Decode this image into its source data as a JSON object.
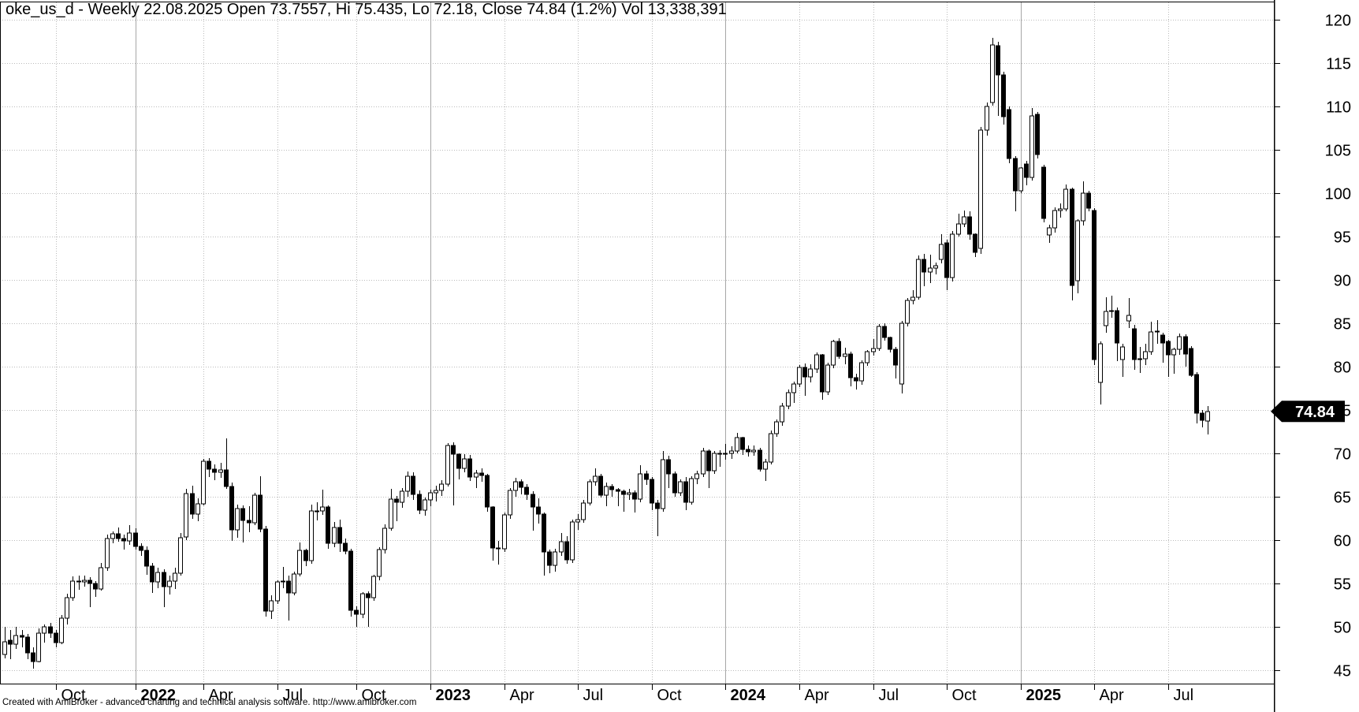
{
  "title": {
    "text": "oke_us_d - Weekly 22.08.2025 Open 73.7557, Hi 75.435, Lo 72.18, Close 74.84 (1.2%) Vol 13,338,391"
  },
  "footer": {
    "credit": "Created with AmiBroker - advanced charting and technical analysis software. http://www.amibroker.com"
  },
  "price_marker": {
    "value": "74.84",
    "price": 74.84,
    "bg_color": "#000000",
    "text_color": "#ffffff"
  },
  "colors": {
    "background": "#ffffff",
    "axis_line": "#000000",
    "grid_dotted": "#bbbbbb",
    "grid_year_solid": "#a6a6a6",
    "candle_up_fill": "#ffffff",
    "candle_down_fill": "#000000",
    "candle_outline": "#000000",
    "label_text": "#000000"
  },
  "chart_data": {
    "type": "candlestick",
    "symbol": "oke_us_d",
    "interval": "Weekly",
    "last_bar": {
      "date": "22.08.2025",
      "open": 73.7557,
      "high": 75.435,
      "low": 72.18,
      "close": 74.84,
      "change_pct": "1.2%",
      "volume": "13,338,391"
    },
    "ylim": [
      43.45,
      122.0
    ],
    "y_axis": {
      "min": 45,
      "max": 120,
      "step": 5,
      "tick_labels": [
        "120",
        "115",
        "110",
        "105",
        "100",
        "95",
        "90",
        "85",
        "80",
        "75",
        "70",
        "65",
        "60",
        "55",
        "50",
        "45"
      ]
    },
    "x_axis": {
      "tick_labels": [
        "Oct",
        "2022",
        "Apr",
        "Jul",
        "Oct",
        "2023",
        "Apr",
        "Jul",
        "Oct",
        "2024",
        "Apr",
        "Jul",
        "Oct",
        "2025",
        "Apr",
        "Jul"
      ],
      "tick_bar_index": [
        9,
        23,
        35,
        48,
        62,
        75,
        88,
        101,
        114,
        127,
        140,
        153,
        166,
        179,
        192,
        205
      ],
      "tick_is_year": [
        false,
        true,
        false,
        false,
        false,
        true,
        false,
        false,
        false,
        true,
        false,
        false,
        false,
        true,
        false,
        false
      ]
    },
    "grid": {
      "horizontal": "dotted",
      "vertical_month": "dotted",
      "vertical_year": "solid"
    },
    "bars_format": [
      "open",
      "high",
      "low",
      "close"
    ],
    "bars": [
      [
        46.8,
        50.0,
        46.4,
        48.3
      ],
      [
        48.5,
        49.6,
        46.3,
        48.0
      ],
      [
        48.0,
        50.0,
        47.5,
        49.0
      ],
      [
        49.0,
        49.6,
        47.6,
        48.8
      ],
      [
        48.8,
        49.2,
        46.3,
        47.0
      ],
      [
        47.0,
        47.6,
        45.2,
        46.0
      ],
      [
        46.0,
        49.8,
        45.9,
        49.3
      ],
      [
        49.3,
        50.3,
        48.2,
        50.0
      ],
      [
        50.0,
        50.5,
        48.7,
        49.3
      ],
      [
        49.3,
        49.6,
        47.6,
        48.2
      ],
      [
        48.2,
        51.4,
        48.0,
        51.0
      ],
      [
        51.0,
        53.8,
        50.3,
        53.4
      ],
      [
        53.4,
        55.8,
        53.0,
        55.3
      ],
      [
        55.3,
        55.9,
        54.3,
        55.2
      ],
      [
        55.2,
        55.9,
        54.6,
        55.4
      ],
      [
        55.4,
        55.7,
        52.3,
        55.0
      ],
      [
        55.0,
        55.3,
        53.5,
        54.4
      ],
      [
        54.4,
        57.4,
        54.2,
        56.8
      ],
      [
        56.8,
        60.6,
        56.5,
        60.2
      ],
      [
        60.2,
        61.0,
        59.6,
        60.7
      ],
      [
        60.7,
        61.5,
        59.8,
        60.2
      ],
      [
        60.2,
        60.6,
        58.9,
        59.9
      ],
      [
        59.9,
        61.7,
        59.5,
        60.8
      ],
      [
        60.8,
        61.4,
        58.9,
        59.3
      ],
      [
        59.3,
        59.6,
        58.2,
        58.8
      ],
      [
        58.8,
        59.3,
        56.0,
        57.0
      ],
      [
        57.0,
        57.4,
        53.9,
        55.2
      ],
      [
        55.2,
        56.8,
        54.5,
        56.3
      ],
      [
        56.3,
        56.6,
        52.3,
        54.6
      ],
      [
        54.6,
        55.9,
        53.7,
        55.3
      ],
      [
        55.3,
        56.8,
        54.4,
        56.2
      ],
      [
        56.2,
        60.8,
        55.9,
        60.3
      ],
      [
        60.4,
        65.9,
        60.0,
        65.4
      ],
      [
        65.4,
        66.3,
        62.5,
        63.0
      ],
      [
        63.0,
        64.8,
        62.2,
        64.2
      ],
      [
        64.2,
        69.4,
        64.0,
        69.1
      ],
      [
        69.1,
        69.5,
        67.3,
        68.2
      ],
      [
        68.2,
        68.7,
        66.9,
        67.8
      ],
      [
        67.8,
        68.9,
        67.2,
        68.1
      ],
      [
        68.1,
        71.7,
        65.9,
        66.2
      ],
      [
        66.2,
        66.6,
        59.9,
        61.2
      ],
      [
        61.2,
        64.1,
        60.3,
        63.6
      ],
      [
        63.6,
        64.0,
        59.7,
        62.3
      ],
      [
        62.3,
        63.9,
        60.9,
        62.0
      ],
      [
        62.0,
        65.5,
        61.7,
        65.2
      ],
      [
        65.2,
        67.4,
        60.9,
        61.3
      ],
      [
        61.3,
        61.6,
        51.2,
        51.8
      ],
      [
        51.8,
        53.6,
        50.9,
        53.0
      ],
      [
        53.0,
        55.4,
        52.6,
        55.2
      ],
      [
        55.2,
        56.9,
        54.5,
        55.3
      ],
      [
        55.3,
        55.9,
        50.7,
        53.9
      ],
      [
        53.9,
        56.4,
        53.6,
        56.1
      ],
      [
        56.1,
        59.7,
        55.8,
        58.8
      ],
      [
        58.8,
        59.0,
        57.0,
        57.6
      ],
      [
        57.6,
        64.1,
        57.3,
        63.4
      ],
      [
        63.4,
        64.4,
        62.3,
        63.4
      ],
      [
        63.4,
        65.8,
        62.9,
        63.8
      ],
      [
        63.8,
        64.0,
        59.0,
        59.6
      ],
      [
        59.6,
        62.1,
        59.2,
        61.5
      ],
      [
        61.5,
        62.4,
        58.6,
        59.6
      ],
      [
        59.6,
        60.2,
        58.4,
        58.7
      ],
      [
        58.7,
        59.0,
        51.2,
        51.9
      ],
      [
        51.9,
        52.4,
        50.0,
        51.5
      ],
      [
        51.5,
        54.0,
        51.0,
        53.8
      ],
      [
        53.8,
        54.1,
        50.0,
        53.4
      ],
      [
        53.4,
        56.0,
        53.0,
        55.8
      ],
      [
        55.8,
        59.2,
        55.4,
        58.9
      ],
      [
        58.9,
        61.8,
        58.5,
        61.4
      ],
      [
        61.4,
        65.9,
        61.1,
        64.7
      ],
      [
        64.7,
        65.1,
        62.2,
        64.4
      ],
      [
        64.4,
        66.0,
        63.7,
        65.6
      ],
      [
        65.6,
        67.9,
        65.0,
        67.4
      ],
      [
        67.4,
        67.8,
        64.6,
        65.3
      ],
      [
        65.3,
        65.7,
        63.0,
        63.5
      ],
      [
        63.5,
        64.9,
        62.8,
        64.6
      ],
      [
        64.6,
        65.8,
        63.9,
        65.5
      ],
      [
        65.5,
        66.3,
        64.5,
        65.7
      ],
      [
        65.7,
        66.9,
        65.1,
        66.5
      ],
      [
        66.5,
        71.2,
        66.2,
        70.9
      ],
      [
        70.9,
        71.3,
        64.0,
        69.9
      ],
      [
        69.9,
        70.0,
        67.0,
        68.3
      ],
      [
        68.3,
        69.9,
        67.8,
        69.4
      ],
      [
        69.4,
        69.8,
        66.8,
        67.3
      ],
      [
        67.3,
        68.1,
        66.0,
        67.7
      ],
      [
        67.7,
        68.3,
        66.7,
        67.5
      ],
      [
        67.5,
        67.6,
        63.3,
        63.8
      ],
      [
        63.8,
        63.9,
        57.6,
        59.1
      ],
      [
        59.1,
        59.9,
        57.2,
        59.0
      ],
      [
        59.0,
        63.2,
        58.6,
        62.9
      ],
      [
        62.9,
        66.0,
        62.5,
        65.7
      ],
      [
        65.7,
        67.2,
        65.0,
        66.7
      ],
      [
        66.7,
        67.0,
        65.3,
        66.1
      ],
      [
        66.1,
        66.5,
        64.6,
        65.3
      ],
      [
        65.3,
        65.6,
        61.1,
        63.8
      ],
      [
        63.8,
        64.8,
        61.9,
        63.0
      ],
      [
        63.0,
        63.2,
        55.9,
        58.6
      ],
      [
        58.6,
        58.9,
        56.2,
        57.1
      ],
      [
        57.1,
        59.0,
        56.4,
        58.6
      ],
      [
        58.6,
        60.8,
        58.2,
        59.8
      ],
      [
        59.8,
        60.5,
        57.3,
        57.7
      ],
      [
        57.7,
        62.4,
        57.4,
        62.1
      ],
      [
        62.1,
        63.0,
        61.2,
        62.4
      ],
      [
        62.4,
        64.6,
        62.0,
        64.3
      ],
      [
        64.3,
        67.0,
        64.0,
        66.7
      ],
      [
        66.7,
        68.3,
        66.3,
        67.4
      ],
      [
        67.4,
        67.6,
        64.9,
        65.2
      ],
      [
        65.2,
        66.6,
        63.9,
        66.2
      ],
      [
        66.2,
        66.5,
        65.0,
        65.8
      ],
      [
        65.8,
        66.0,
        63.9,
        65.6
      ],
      [
        65.6,
        65.8,
        63.3,
        65.3
      ],
      [
        65.3,
        65.9,
        64.6,
        65.5
      ],
      [
        65.5,
        65.7,
        63.2,
        64.7
      ],
      [
        64.7,
        68.6,
        64.4,
        67.6
      ],
      [
        67.6,
        68.0,
        66.4,
        67.0
      ],
      [
        67.0,
        67.3,
        63.5,
        64.3
      ],
      [
        64.3,
        64.6,
        60.5,
        63.6
      ],
      [
        63.6,
        70.3,
        63.3,
        69.3
      ],
      [
        69.3,
        69.7,
        66.0,
        67.6
      ],
      [
        67.6,
        67.9,
        65.0,
        65.5
      ],
      [
        65.5,
        67.0,
        65.1,
        66.7
      ],
      [
        66.7,
        67.3,
        63.5,
        64.4
      ],
      [
        64.4,
        67.4,
        64.1,
        67.1
      ],
      [
        67.1,
        68.0,
        66.5,
        67.6
      ],
      [
        67.6,
        70.6,
        67.3,
        70.3
      ],
      [
        70.3,
        70.5,
        66.0,
        68.0
      ],
      [
        68.0,
        70.3,
        67.6,
        70.0
      ],
      [
        70.0,
        70.4,
        68.5,
        69.9
      ],
      [
        69.9,
        71.1,
        69.3,
        70.0
      ],
      [
        70.0,
        70.8,
        69.4,
        70.3
      ],
      [
        70.3,
        72.4,
        70.0,
        71.8
      ],
      [
        71.8,
        71.9,
        69.8,
        70.5
      ],
      [
        70.5,
        70.9,
        69.6,
        70.2
      ],
      [
        70.2,
        70.9,
        69.7,
        70.4
      ],
      [
        70.4,
        70.6,
        67.9,
        68.2
      ],
      [
        68.2,
        69.4,
        66.8,
        69.0
      ],
      [
        69.0,
        72.6,
        68.7,
        72.3
      ],
      [
        72.3,
        73.9,
        71.9,
        73.6
      ],
      [
        73.6,
        75.8,
        73.2,
        75.5
      ],
      [
        75.5,
        77.4,
        75.1,
        77.0
      ],
      [
        77.0,
        78.3,
        75.8,
        78.0
      ],
      [
        78.0,
        80.2,
        77.6,
        79.9
      ],
      [
        79.9,
        80.4,
        76.6,
        78.8
      ],
      [
        78.8,
        80.3,
        78.2,
        79.7
      ],
      [
        79.7,
        81.6,
        79.3,
        81.4
      ],
      [
        81.4,
        81.5,
        76.2,
        77.1
      ],
      [
        77.1,
        80.5,
        76.7,
        80.2
      ],
      [
        80.2,
        83.1,
        79.8,
        82.9
      ],
      [
        82.9,
        83.3,
        80.9,
        81.2
      ],
      [
        81.2,
        82.2,
        80.3,
        81.5
      ],
      [
        81.5,
        81.7,
        77.7,
        78.7
      ],
      [
        78.7,
        79.2,
        77.4,
        78.4
      ],
      [
        78.4,
        80.7,
        77.9,
        80.5
      ],
      [
        80.5,
        81.9,
        80.1,
        81.7
      ],
      [
        81.7,
        83.2,
        81.3,
        82.1
      ],
      [
        82.1,
        84.9,
        81.8,
        84.6
      ],
      [
        84.6,
        85.0,
        83.0,
        83.4
      ],
      [
        83.4,
        83.5,
        81.6,
        82.0
      ],
      [
        82.0,
        82.3,
        78.6,
        80.2
      ],
      [
        78.0,
        85.3,
        76.9,
        85.0
      ],
      [
        85.0,
        87.9,
        84.6,
        87.6
      ],
      [
        87.6,
        88.8,
        87.2,
        88.0
      ],
      [
        88.0,
        92.8,
        87.7,
        92.4
      ],
      [
        92.4,
        93.0,
        89.3,
        90.9
      ],
      [
        90.9,
        92.9,
        89.6,
        91.4
      ],
      [
        91.4,
        92.0,
        90.6,
        91.6
      ],
      [
        92.4,
        95.3,
        91.9,
        94.1
      ],
      [
        94.3,
        94.6,
        88.8,
        90.3
      ],
      [
        90.3,
        95.6,
        89.8,
        95.3
      ],
      [
        95.3,
        97.6,
        95.0,
        96.5
      ],
      [
        96.5,
        98.0,
        96.1,
        97.3
      ],
      [
        97.3,
        97.9,
        94.6,
        95.3
      ],
      [
        95.3,
        95.4,
        92.6,
        93.2
      ],
      [
        93.6,
        107.6,
        93.0,
        107.3
      ],
      [
        107.3,
        110.5,
        106.6,
        110.0
      ],
      [
        110.5,
        117.9,
        110.1,
        117.1
      ],
      [
        117.0,
        117.5,
        108.9,
        113.6
      ],
      [
        113.6,
        114.0,
        107.9,
        108.8
      ],
      [
        109.6,
        110.0,
        103.5,
        104.0
      ],
      [
        104.0,
        104.3,
        97.9,
        100.3
      ],
      [
        100.3,
        103.0,
        100.0,
        102.9
      ],
      [
        103.4,
        103.7,
        100.9,
        101.8
      ],
      [
        101.8,
        109.8,
        101.5,
        108.9
      ],
      [
        109.1,
        109.4,
        104.0,
        104.5
      ],
      [
        103.0,
        103.3,
        96.6,
        97.1
      ],
      [
        95.2,
        96.4,
        94.3,
        96.0
      ],
      [
        96.0,
        98.4,
        95.5,
        98.0
      ],
      [
        98.0,
        98.8,
        97.2,
        98.2
      ],
      [
        98.2,
        101.0,
        97.9,
        100.5
      ],
      [
        100.5,
        100.6,
        87.6,
        89.4
      ],
      [
        89.9,
        97.0,
        88.5,
        96.8
      ],
      [
        96.8,
        101.4,
        96.3,
        100.0
      ],
      [
        100.0,
        100.3,
        97.9,
        98.3
      ],
      [
        98.0,
        98.3,
        80.2,
        80.8
      ],
      [
        78.2,
        82.9,
        75.6,
        82.6
      ],
      [
        84.7,
        88.0,
        83.9,
        86.4
      ],
      [
        86.4,
        88.2,
        85.6,
        86.5
      ],
      [
        86.5,
        86.8,
        80.6,
        82.7
      ],
      [
        80.8,
        82.6,
        78.8,
        82.3
      ],
      [
        85.3,
        87.9,
        84.5,
        85.9
      ],
      [
        84.4,
        84.8,
        79.6,
        80.8
      ],
      [
        80.8,
        82.3,
        79.3,
        80.9
      ],
      [
        80.9,
        82.6,
        80.2,
        81.7
      ],
      [
        81.7,
        85.2,
        81.4,
        84.0
      ],
      [
        84.0,
        85.4,
        82.6,
        84.1
      ],
      [
        83.6,
        83.9,
        80.5,
        82.7
      ],
      [
        82.9,
        83.1,
        78.8,
        81.4
      ],
      [
        81.4,
        82.2,
        79.2,
        82.0
      ],
      [
        82.0,
        83.8,
        81.4,
        83.5
      ],
      [
        83.5,
        83.7,
        80.0,
        81.5
      ],
      [
        82.1,
        82.4,
        78.8,
        79.0
      ],
      [
        79.1,
        79.4,
        73.5,
        74.6
      ],
      [
        74.6,
        75.0,
        73.0,
        73.8
      ],
      [
        73.7557,
        75.435,
        72.18,
        74.84
      ]
    ]
  }
}
